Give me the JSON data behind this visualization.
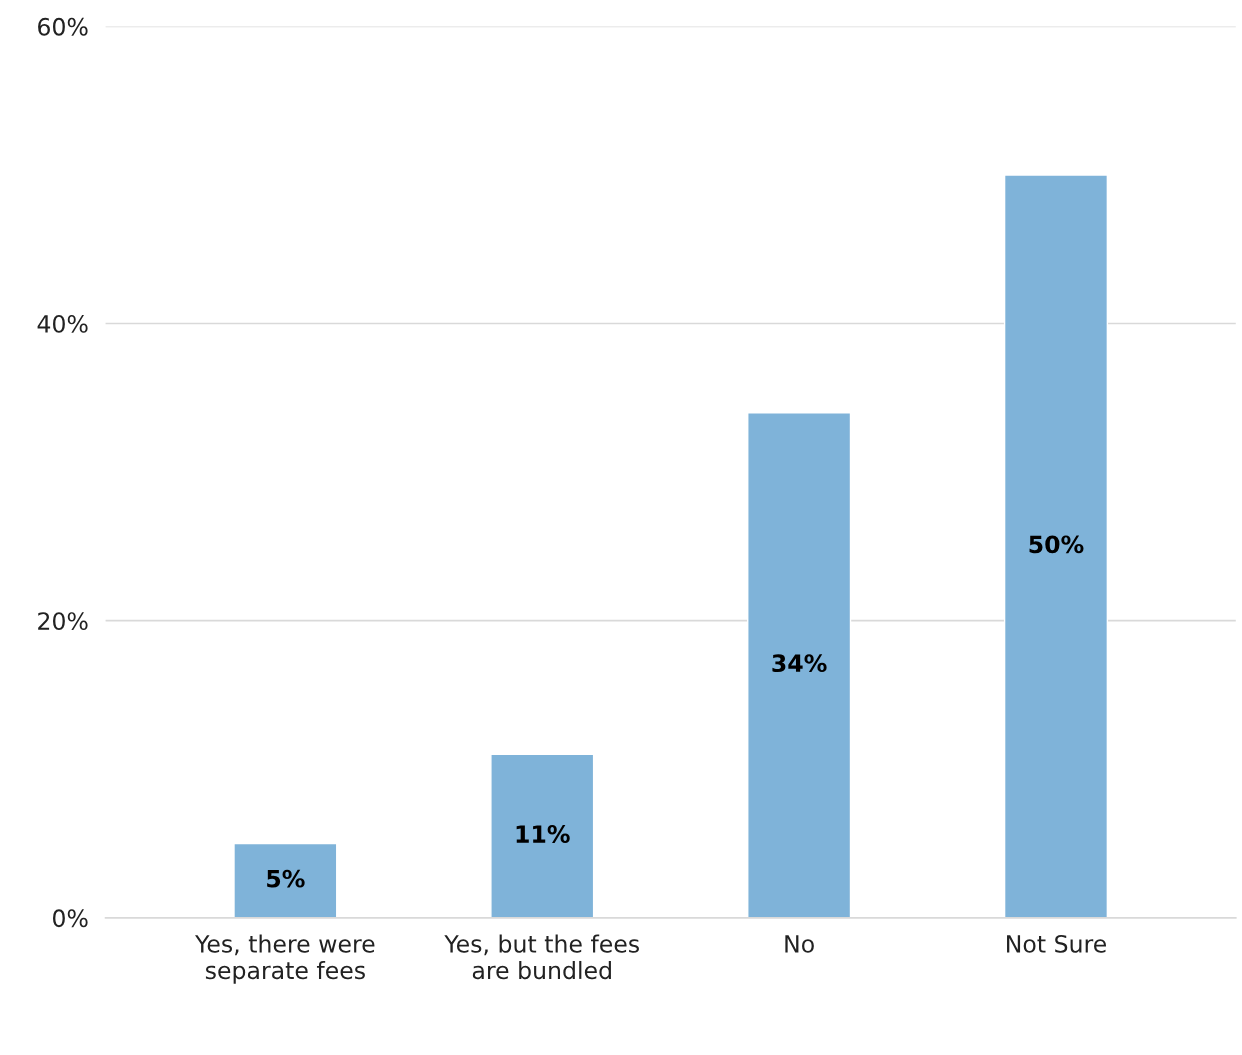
{
  "chart_data": {
    "type": "bar",
    "categories": [
      "Yes, there were\nseparate fees",
      "Yes, but the fees\nare bundled",
      "No",
      "Not Sure"
    ],
    "values": [
      5,
      11,
      34,
      50
    ],
    "color": "#7fb3d9",
    "ylim": [
      0,
      60
    ],
    "yticks": [
      {
        "value": 0,
        "label": "0%"
      },
      {
        "value": 20,
        "label": "20%"
      },
      {
        "value": 40,
        "label": "40%"
      },
      {
        "value": 60,
        "label": "60%"
      }
    ],
    "value_labels": [
      "5%",
      "11%",
      "34%",
      "50%"
    ],
    "grid": "y"
  }
}
